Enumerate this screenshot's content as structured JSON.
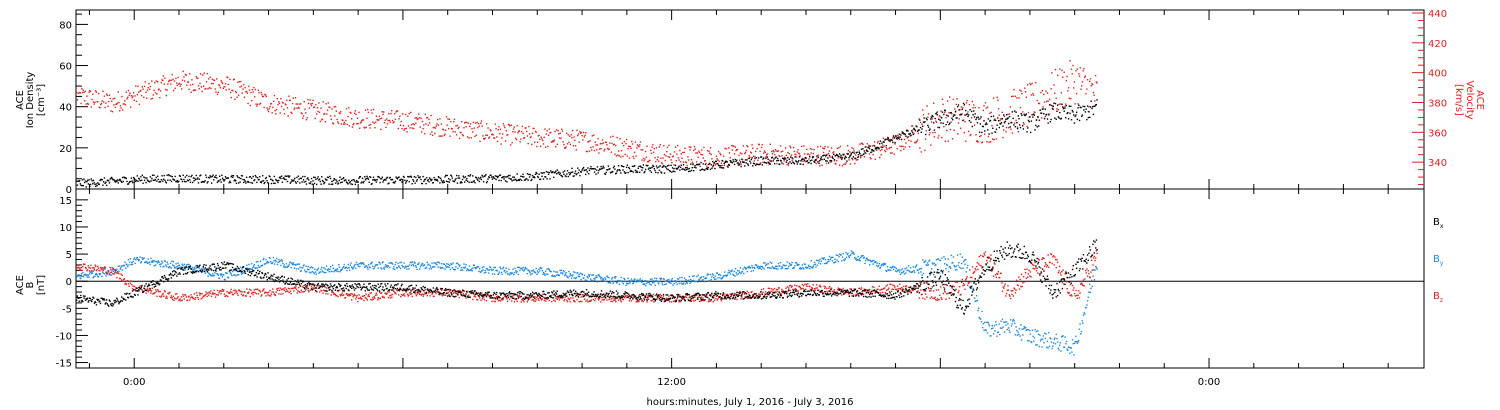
{
  "chart_data": [
    {
      "type": "scatter",
      "panel": "top",
      "left_axis_label_lines": [
        "ACE",
        "Ion Density",
        "[cm⁻³]"
      ],
      "right_axis_label_lines": [
        "ACE",
        "Velocity",
        "[km/s]"
      ],
      "left_ylim": [
        0,
        87
      ],
      "left_ticks": [
        0,
        20,
        40,
        60,
        80
      ],
      "right_ylim": [
        322,
        442
      ],
      "right_ticks": [
        340,
        360,
        380,
        400,
        420,
        440
      ],
      "series": [
        {
          "axis": "left",
          "color": "#000000",
          "points": [
            [
              -1.3,
              3
            ],
            [
              -0.5,
              4
            ],
            [
              0,
              5
            ],
            [
              1,
              5.5
            ],
            [
              2,
              5
            ],
            [
              3,
              5
            ],
            [
              4,
              4.5
            ],
            [
              5,
              4.5
            ],
            [
              6,
              4.8
            ],
            [
              7,
              5
            ],
            [
              8,
              5.5
            ],
            [
              9,
              6.5
            ],
            [
              10,
              9
            ],
            [
              11,
              10
            ],
            [
              12,
              10
            ],
            [
              13,
              12
            ],
            [
              14,
              14
            ],
            [
              15,
              14
            ],
            [
              16,
              16
            ],
            [
              17,
              25
            ],
            [
              18,
              34
            ],
            [
              18.5,
              38
            ],
            [
              19,
              30
            ],
            [
              19.5,
              35
            ],
            [
              20,
              32
            ],
            [
              20.5,
              38
            ],
            [
              21,
              36
            ],
            [
              21.5,
              40
            ]
          ]
        },
        {
          "axis": "right",
          "color": "#e02020",
          "points": [
            [
              -1.3,
              385
            ],
            [
              -0.5,
              380
            ],
            [
              0,
              385
            ],
            [
              1,
              395
            ],
            [
              2,
              392
            ],
            [
              3,
              380
            ],
            [
              4,
              375
            ],
            [
              5,
              370
            ],
            [
              6,
              368
            ],
            [
              7,
              364
            ],
            [
              8,
              360
            ],
            [
              9,
              357
            ],
            [
              10,
              355
            ],
            [
              11,
              350
            ],
            [
              12,
              345
            ],
            [
              13,
              344
            ],
            [
              14,
              346
            ],
            [
              15,
              345
            ],
            [
              16,
              345
            ],
            [
              17,
              352
            ],
            [
              18,
              370
            ],
            [
              19,
              368
            ],
            [
              20,
              378
            ],
            [
              21,
              395
            ],
            [
              21.5,
              385
            ]
          ]
        }
      ]
    },
    {
      "type": "scatter",
      "panel": "bottom",
      "left_axis_label_lines": [
        "ACE",
        "B",
        "[nT]"
      ],
      "ylim": [
        -16,
        17
      ],
      "y_ticks": [
        -15,
        -10,
        -5,
        0,
        5,
        10,
        15
      ],
      "zero_line": true,
      "series": [
        {
          "name": "Bₓ",
          "color": "#000000",
          "points": [
            [
              -1.3,
              -3
            ],
            [
              -0.5,
              -4
            ],
            [
              0,
              -2
            ],
            [
              1,
              2
            ],
            [
              2,
              3
            ],
            [
              3,
              1
            ],
            [
              4,
              -1
            ],
            [
              5,
              -1
            ],
            [
              6,
              -1
            ],
            [
              7,
              -2
            ],
            [
              8,
              -2.5
            ],
            [
              9,
              -2.5
            ],
            [
              10,
              -2
            ],
            [
              11,
              -2.5
            ],
            [
              12,
              -3
            ],
            [
              13,
              -2.5
            ],
            [
              14,
              -2.5
            ],
            [
              15,
              -2
            ],
            [
              16,
              -2
            ],
            [
              17,
              -2.5
            ],
            [
              18,
              1
            ],
            [
              18.5,
              -5
            ],
            [
              19,
              3
            ],
            [
              19.5,
              6
            ],
            [
              20,
              5
            ],
            [
              20.5,
              -2
            ],
            [
              21,
              2
            ],
            [
              21.5,
              7
            ]
          ]
        },
        {
          "name": "Bᵧ",
          "color": "#1a88e0",
          "points": [
            [
              -1.3,
              1
            ],
            [
              -0.5,
              2
            ],
            [
              0,
              4
            ],
            [
              1,
              3
            ],
            [
              2,
              1
            ],
            [
              3,
              4
            ],
            [
              4,
              2
            ],
            [
              5,
              3
            ],
            [
              6,
              3
            ],
            [
              7,
              3
            ],
            [
              8,
              2
            ],
            [
              9,
              2
            ],
            [
              10,
              1
            ],
            [
              11,
              0
            ],
            [
              12,
              0
            ],
            [
              13,
              1
            ],
            [
              14,
              3
            ],
            [
              15,
              3
            ],
            [
              16,
              5
            ],
            [
              17,
              2
            ],
            [
              18,
              3
            ],
            [
              18.5,
              4
            ],
            [
              19,
              -9
            ],
            [
              19.5,
              -8
            ],
            [
              20,
              -10
            ],
            [
              20.5,
              -11
            ],
            [
              21,
              -12
            ],
            [
              21.5,
              4
            ]
          ]
        },
        {
          "name": "B_z",
          "color": "#e02020",
          "points": [
            [
              -1.3,
              3
            ],
            [
              -0.5,
              2
            ],
            [
              0,
              -1
            ],
            [
              1,
              -3
            ],
            [
              2,
              -2
            ],
            [
              3,
              -2
            ],
            [
              4,
              -1
            ],
            [
              5,
              -3
            ],
            [
              6,
              -2
            ],
            [
              7,
              -2
            ],
            [
              8,
              -3
            ],
            [
              9,
              -3
            ],
            [
              10,
              -3
            ],
            [
              11,
              -3
            ],
            [
              12,
              -3
            ],
            [
              13,
              -3
            ],
            [
              14,
              -2
            ],
            [
              15,
              -1
            ],
            [
              16,
              -2
            ],
            [
              17,
              -1
            ],
            [
              18,
              -2
            ],
            [
              18.5,
              -1
            ],
            [
              19,
              5
            ],
            [
              19.5,
              -2
            ],
            [
              20,
              2
            ],
            [
              20.5,
              4
            ],
            [
              21,
              -3
            ],
            [
              21.5,
              5
            ]
          ]
        }
      ],
      "legend_labels": [
        "Bx",
        "By",
        "Bz"
      ]
    }
  ],
  "x_axis": {
    "label": "hours:minutes, July  1, 2016 - July  3, 2016",
    "major_tick_labels": [
      {
        "hour": 0,
        "label": "0:00"
      },
      {
        "hour": 12,
        "label": "12:00"
      },
      {
        "hour": 24,
        "label": "0:00"
      }
    ],
    "xlim_hours": [
      -1.3,
      28.8
    ],
    "minor_tick_step_hours": 1
  }
}
